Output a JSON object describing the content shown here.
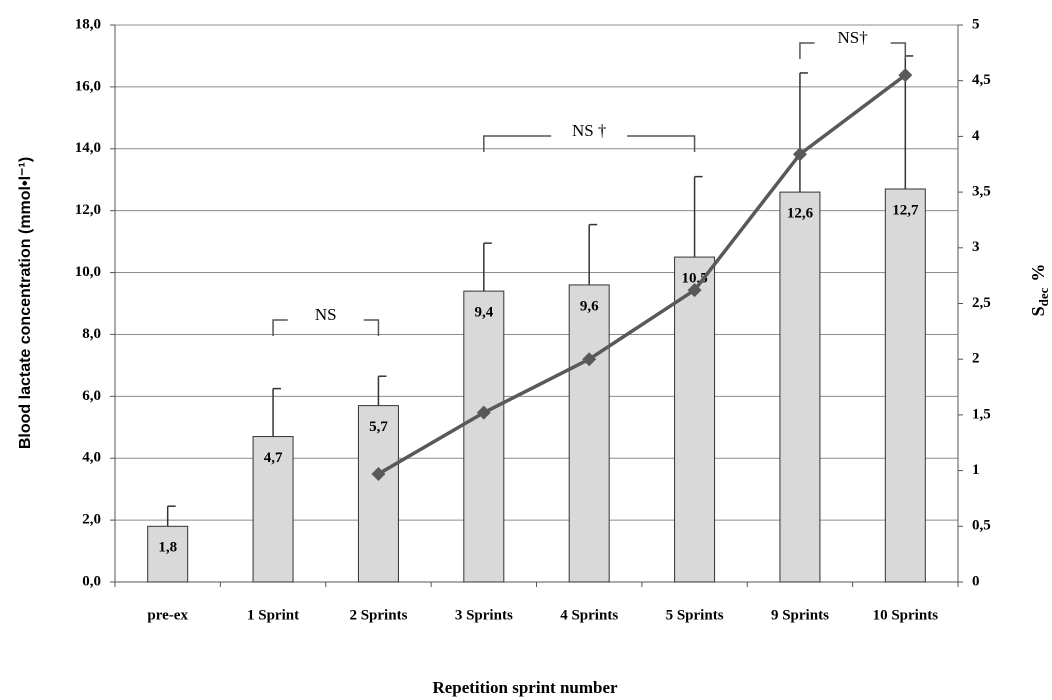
{
  "chart_data": {
    "type": "bar",
    "categories": [
      "pre-ex",
      "1 Sprint",
      "2 Sprints",
      "3 Sprints",
      "4 Sprints",
      "5 Sprints",
      "9 Sprints",
      "10 Sprints"
    ],
    "series": [
      {
        "type": "bar",
        "color": "#d9d9d9",
        "values": [
          1.8,
          4.7,
          5.7,
          9.4,
          9.6,
          10.5,
          12.6,
          12.7
        ],
        "value_labels": [
          "1,8",
          "4,7",
          "5,7",
          "9,4",
          "9,6",
          "10,5",
          "12,6",
          "12,7"
        ],
        "errors": [
          0.65,
          1.55,
          0.95,
          1.55,
          1.95,
          2.6,
          3.85,
          4.3
        ]
      },
      {
        "type": "line",
        "axis": "y2",
        "color": "#595959",
        "values": [
          null,
          null,
          0.97,
          1.52,
          2.0,
          2.62,
          3.84,
          4.55
        ]
      }
    ],
    "ylim": [
      0,
      18
    ],
    "yticks": [
      {
        "value": 0,
        "label": "0,0"
      },
      {
        "value": 2,
        "label": "2,0"
      },
      {
        "value": 4,
        "label": "4,0"
      },
      {
        "value": 6,
        "label": "6,0"
      },
      {
        "value": 8,
        "label": "8,0"
      },
      {
        "value": 10,
        "label": "10,0"
      },
      {
        "value": 12,
        "label": "12,0"
      },
      {
        "value": 14,
        "label": "14,0"
      },
      {
        "value": 16,
        "label": "16,0"
      },
      {
        "value": 18,
        "label": "18,0"
      }
    ],
    "y2lim": [
      0,
      5
    ],
    "y2ticks": [
      0,
      {
        "value": 0.5,
        "label": "0,5"
      },
      1,
      {
        "value": 1.5,
        "label": "1,5"
      },
      2,
      {
        "value": 2.5,
        "label": "2,5"
      },
      3,
      {
        "value": 3.5,
        "label": "3,5"
      },
      4,
      {
        "value": 4.5,
        "label": "4,5"
      },
      5
    ],
    "ylabel": "Blood  lactate concentration (mmol•l⁻¹)",
    "y2label": {
      "main": "S",
      "sub": "dec",
      "unit": "%"
    },
    "xlabel": "Repetition sprint number",
    "annotations": [
      "NS",
      "NS †",
      "NS†"
    ],
    "grid": true
  }
}
